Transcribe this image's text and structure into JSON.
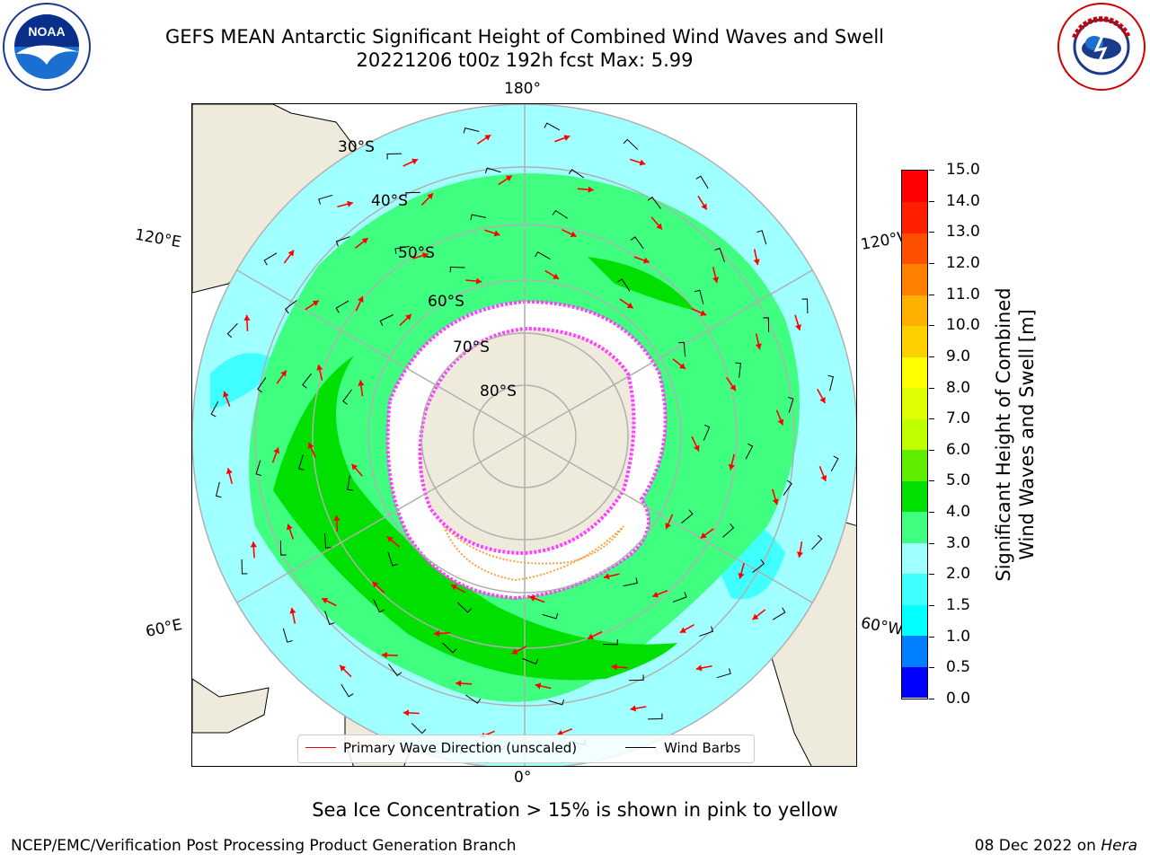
{
  "header": {
    "title_line1": "GEFS MEAN Antarctic Significant Height of Combined Wind Waves and Swell",
    "title_line2": "20221206 t00z 192h fcst   Max: 5.99"
  },
  "logos": {
    "left": "NOAA",
    "right": "NATIONAL WEATHER SERVICE"
  },
  "map": {
    "projection": "south-polar-stereographic",
    "longitude_labels": {
      "top": "180°",
      "bottom": "0°",
      "upper_left": "120°E",
      "upper_right": "120°W",
      "lower_left": "60°E",
      "lower_right": "60°W"
    },
    "latitude_labels": [
      "30°S",
      "40°S",
      "50°S",
      "60°S",
      "70°S",
      "80°S"
    ],
    "colors": {
      "land": "#efebdc",
      "sea_ice": "#ffffff",
      "gridline": "#b0b0b0",
      "wave_arrow": "#ff0000",
      "wind_barb": "#000000"
    }
  },
  "legend": {
    "wave_label": "Primary Wave Direction (unscaled)",
    "barb_label": "Wind Barbs"
  },
  "colorbar": {
    "title_line1": "Significant Height of Combined",
    "title_line2": "Wind Waves and Swell [m]",
    "ticks": [
      "0.0",
      "0.5",
      "1.0",
      "1.5",
      "2.0",
      "3.0",
      "4.0",
      "5.0",
      "6.0",
      "7.0",
      "8.0",
      "9.0",
      "10.0",
      "11.0",
      "12.0",
      "13.0",
      "14.0",
      "15.0"
    ],
    "colors": [
      "#0000ff",
      "#0080ff",
      "#00ffff",
      "#40ffff",
      "#a0ffff",
      "#40ff80",
      "#00e000",
      "#60ee00",
      "#c0ff00",
      "#e0ff00",
      "#ffff00",
      "#ffd000",
      "#ffb000",
      "#ff8000",
      "#ff5000",
      "#ff2000",
      "#ff0000"
    ]
  },
  "subtitle": "Sea Ice Concentration > 15% is shown in pink to yellow",
  "footer": {
    "left": "NCEP/EMC/Verification Post Processing Product Generation Branch",
    "right_date": "08 Dec 2022 on ",
    "right_host": "Hera"
  }
}
